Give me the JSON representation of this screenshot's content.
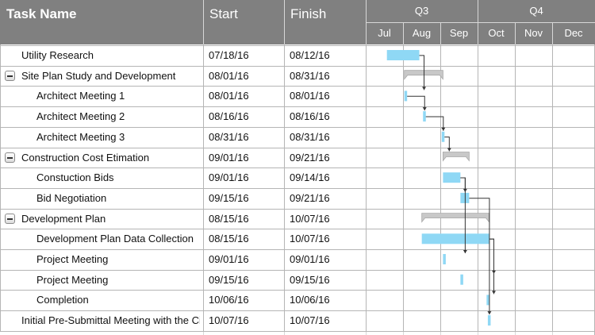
{
  "columns": {
    "task": "Task Name",
    "start": "Start",
    "finish": "Finish"
  },
  "quarters": [
    "Q3",
    "Q4"
  ],
  "months": [
    "Jul",
    "Aug",
    "Sep",
    "Oct",
    "Nov",
    "Dec"
  ],
  "colors": {
    "header": "#808080",
    "task_bar": "#8fd8f5",
    "summary_bar": "#c8c8c8",
    "link": "#333333"
  },
  "rows": [
    {
      "name": "Utility Research",
      "start": "07/18/16",
      "finish": "08/12/16",
      "level": 0,
      "summary": false
    },
    {
      "name": "Site Plan Study and Development",
      "start": "08/01/16",
      "finish": "08/31/16",
      "level": 0,
      "summary": true
    },
    {
      "name": "Architect Meeting 1",
      "start": "08/01/16",
      "finish": "08/01/16",
      "level": 1,
      "summary": false
    },
    {
      "name": "Architect Meeting 2",
      "start": "08/16/16",
      "finish": "08/16/16",
      "level": 1,
      "summary": false
    },
    {
      "name": "Architect Meeting 3",
      "start": "08/31/16",
      "finish": "08/31/16",
      "level": 1,
      "summary": false
    },
    {
      "name": "Construction Cost Etimation",
      "start": "09/01/16",
      "finish": "09/21/16",
      "level": 0,
      "summary": true
    },
    {
      "name": "Constuction Bids",
      "start": "09/01/16",
      "finish": "09/14/16",
      "level": 1,
      "summary": false
    },
    {
      "name": "Bid Negotiation",
      "start": "09/15/16",
      "finish": "09/21/16",
      "level": 1,
      "summary": false
    },
    {
      "name": "Development Plan",
      "start": "08/15/16",
      "finish": "10/07/16",
      "level": 0,
      "summary": true
    },
    {
      "name": "Development Plan Data Collection",
      "start": "08/15/16",
      "finish": "10/07/16",
      "level": 1,
      "summary": false
    },
    {
      "name": "Project Meeting",
      "start": "09/01/16",
      "finish": "09/01/16",
      "level": 1,
      "summary": false
    },
    {
      "name": "Project Meeting",
      "start": "09/15/16",
      "finish": "09/15/16",
      "level": 1,
      "summary": false
    },
    {
      "name": "Completion",
      "start": "10/06/16",
      "finish": "10/06/16",
      "level": 1,
      "summary": false
    },
    {
      "name": "Initial Pre-Submittal Meeting with the Ci",
      "start": "10/07/16",
      "finish": "10/07/16",
      "level": 0,
      "summary": false
    }
  ],
  "links": [
    [
      0,
      2
    ],
    [
      2,
      3
    ],
    [
      3,
      4
    ],
    [
      4,
      5
    ],
    [
      6,
      7
    ],
    [
      7,
      13
    ],
    [
      6,
      10
    ],
    [
      9,
      11
    ],
    [
      9,
      12
    ]
  ]
}
